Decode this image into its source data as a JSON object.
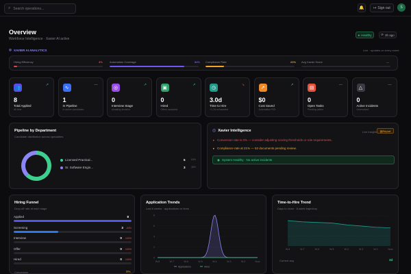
{
  "topbar": {
    "search_placeholder": "Search operations...",
    "sign_out": "Sign out",
    "avatar_initial": "S"
  },
  "header": {
    "title": "Overview",
    "subtitle": "Workforce Intelligence · Xavier AI active",
    "healthy_badge": "Healthy",
    "refresh_label": "3h ago"
  },
  "analytics": {
    "title": "XAVIER AI ANALYTICS",
    "note": "Live · updates on every event",
    "metrics": [
      {
        "label": "Hiring Efficiency",
        "value": "4%",
        "fill": 0.04,
        "color": "#e5484d"
      },
      {
        "label": "Automation Coverage",
        "value": "84%",
        "fill": 0.84,
        "color": "#6e56f7"
      },
      {
        "label": "Compliance Rate",
        "value": "21%",
        "fill": 0.21,
        "color": "#f5a524"
      },
      {
        "label": "Avg Xavier Score",
        "value": "—",
        "fill": 0,
        "color": "#6e6e78"
      }
    ]
  },
  "kpis": [
    {
      "value": "8",
      "label": "Total Applied",
      "sub": "All time",
      "trend": "↗",
      "color": "#5b4de8",
      "icon": "users-icon",
      "glyph": "👥",
      "trend_color": "#3ecf8e"
    },
    {
      "value": "1",
      "label": "In Pipeline",
      "sub": "In active candidates",
      "trend": "—",
      "color": "#3b6ff6",
      "icon": "activity-icon",
      "glyph": "∿",
      "trend_color": "#8a8a92"
    },
    {
      "value": "0",
      "label": "Interview Stage",
      "sub": "Awaiting decision",
      "trend": "↗",
      "color": "#9b4dea",
      "icon": "target-icon",
      "glyph": "◎",
      "trend_color": "#3ecf8e"
    },
    {
      "value": "0",
      "label": "Hired",
      "sub": "Offers accepted",
      "trend": "↗",
      "color": "#2fa36b",
      "icon": "badge-icon",
      "glyph": "▣",
      "trend_color": "#3ecf8e"
    },
    {
      "value": "3.0d",
      "label": "Time to Hire",
      "sub": "+1.2d vs baseline",
      "trend": "↘",
      "color": "#1f9c8c",
      "icon": "clock-icon",
      "glyph": "◷",
      "trend_color": "#e5484d"
    },
    {
      "value": "$0",
      "label": "Cost Saved",
      "sub": "Automation ROI",
      "trend": "↗",
      "color": "#f08a24",
      "icon": "trending-icon",
      "glyph": "↗",
      "trend_color": "#3ecf8e"
    },
    {
      "value": "0",
      "label": "Open Tasks",
      "sub": "Pending action",
      "trend": "—",
      "color": "#e5533d",
      "icon": "briefcase-icon",
      "glyph": "▤",
      "trend_color": "#8a8a92"
    },
    {
      "value": "0",
      "label": "Active Incidents",
      "sub": "Unresolved",
      "trend": "—",
      "color": "#3a3a42",
      "icon": "alert-icon",
      "glyph": "△",
      "trend_color": "#8a8a92"
    }
  ],
  "pipeline": {
    "title": "Pipeline by Department",
    "subtitle": "Candidate distribution across specialties",
    "items": [
      {
        "label": "Licensed Practical...",
        "count": "5",
        "pct": "63%",
        "value": 5,
        "color": "#3ecf8e"
      },
      {
        "label": "Sr. Software Engin...",
        "count": "3",
        "pct": "38%",
        "value": 3,
        "color": "#8b86f5"
      }
    ]
  },
  "xavier": {
    "title": "Xavier Intelligence",
    "live_label": "Live insights",
    "report_label": "Report",
    "alerts": [
      {
        "text": "Conversion rate is 0% — consider adjusting scoring thresholds or role requirements.",
        "color": "#e5484d"
      },
      {
        "text": "Compliance rate at 21% — 52 documents pending review.",
        "color": "#f5a524"
      }
    ],
    "status": "System Healthy · No active incidents"
  },
  "funnel": {
    "title": "Hiring Funnel",
    "subtitle": "Drop-off rate at each stage",
    "stages": [
      {
        "label": "Applied",
        "value": "8",
        "fill": 1.0,
        "color": "#4f58e8",
        "drop": ""
      },
      {
        "label": "Screening",
        "value": "3",
        "fill": 0.375,
        "color": "#2b79e8",
        "drop": "-63%"
      },
      {
        "label": "Interview",
        "value": "0",
        "fill": 0,
        "color": "#6e56f7",
        "drop": "-100%"
      },
      {
        "label": "Offer",
        "value": "0",
        "fill": 0,
        "color": "#6e56f7",
        "drop": "-100%"
      },
      {
        "label": "Hired",
        "value": "0",
        "fill": 0,
        "color": "#6e56f7",
        "drop": "-100%"
      }
    ],
    "conversion_label": "Conversion",
    "conversion_value": "0%"
  },
  "trends": {
    "title": "Application Trends",
    "subtitle": "Last 8 weeks · applications vs hires",
    "legend_applications": "Applications",
    "legend_hires": "Hires"
  },
  "tth": {
    "title": "Time-to-Hire Trend",
    "subtitle": "Days to close · 8-week trajectory",
    "current_label": "Current avg",
    "current_value": "3d"
  },
  "chart_data": [
    {
      "type": "area",
      "title": "Application Trends",
      "x": [
        "W-8",
        "W-7",
        "W-6",
        "W-5",
        "W-4",
        "W-3",
        "W-2",
        "Now"
      ],
      "ylim": [
        0,
        8
      ],
      "yticks": [
        "0",
        "2",
        "4",
        "6",
        "8"
      ],
      "series": [
        {
          "name": "Applications",
          "values": [
            0,
            0,
            0,
            0,
            8,
            0,
            0,
            0
          ],
          "color": "#8b86f5"
        },
        {
          "name": "Hires",
          "values": [
            0,
            0,
            0,
            0,
            0,
            0,
            0,
            0
          ],
          "color": "#3ecf8e"
        }
      ]
    },
    {
      "type": "area",
      "title": "Time-to-Hire Trend",
      "x": [
        "W-8",
        "W-7",
        "W-6",
        "W-5",
        "W-4",
        "W-3",
        "W-2",
        "Now"
      ],
      "ylim": [
        0,
        5
      ],
      "series": [
        {
          "name": "",
          "values": [
            4.2,
            4.0,
            3.9,
            3.8,
            3.5,
            3.3,
            3.1,
            3.0
          ],
          "color": "#1f9c8c"
        }
      ]
    }
  ]
}
